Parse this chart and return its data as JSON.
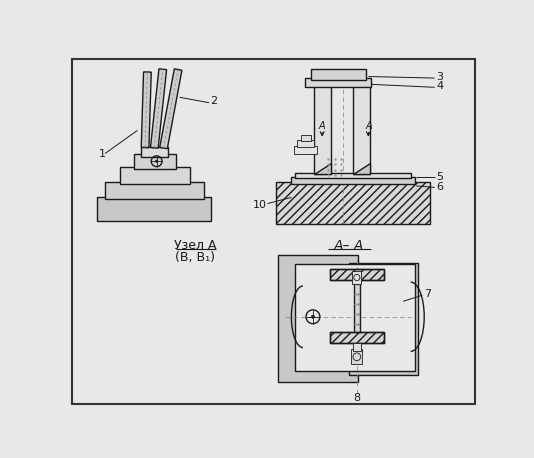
{
  "bg_color": "#e8e8e8",
  "line_color": "#1a1a1a",
  "fill_light": "#d4d4d4",
  "fill_mid": "#c0c0c0",
  "fill_white": "#f0f0f0",
  "label_1": "1",
  "label_2": "2",
  "label_3": "3",
  "label_4": "4",
  "label_5": "5",
  "label_6": "6",
  "label_7": "7",
  "label_8": "8",
  "label_10": "10",
  "title_main": "Узел A",
  "title_sub": "(В, В₁)",
  "section_label": "A– A",
  "fs": 8,
  "fs_title": 9
}
